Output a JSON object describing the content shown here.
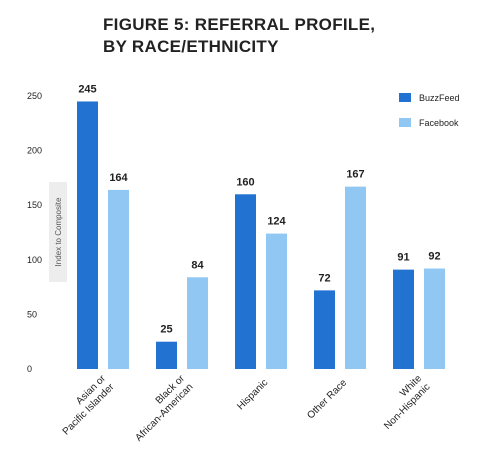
{
  "chart_data": {
    "type": "bar",
    "title_lines": [
      "FIGURE 5: REFERRAL PROFILE,",
      "BY RACE/ETHNICITY"
    ],
    "ylabel": "Index to Composite",
    "ylim": [
      0,
      250
    ],
    "yticks": [
      0,
      50,
      100,
      150,
      200,
      250
    ],
    "categories": [
      [
        "Asian or",
        "Pacific Islander"
      ],
      [
        "Black or",
        "African-American"
      ],
      [
        "Hispanic"
      ],
      [
        "Other Race"
      ],
      [
        "White",
        "Non-Hispanic"
      ]
    ],
    "series": [
      {
        "name": "BuzzFeed",
        "color": "#2273d1",
        "values": [
          245,
          25,
          160,
          72,
          91
        ]
      },
      {
        "name": "Facebook",
        "color": "#90c7f3",
        "values": [
          164,
          84,
          124,
          167,
          92
        ]
      }
    ],
    "legend_position": "top-right",
    "grid": false
  }
}
